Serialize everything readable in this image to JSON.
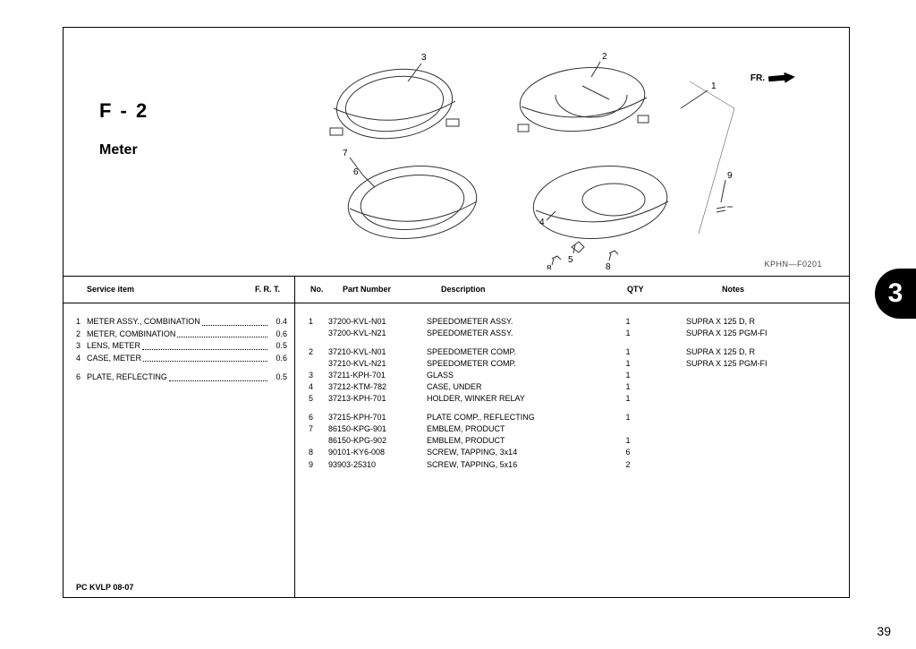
{
  "section": {
    "code": "F - 2",
    "name": "Meter"
  },
  "diagram": {
    "callouts": [
      "1",
      "2",
      "3",
      "4",
      "5",
      "6",
      "7",
      "8",
      "8",
      "9"
    ],
    "code": "KPHN—F0201",
    "fr_label": "FR."
  },
  "service_header": {
    "item": "Service item",
    "frt": "F. R. T."
  },
  "service_items": [
    {
      "no": "1",
      "name": "METER ASSY., COMBINATION",
      "frt": "0.4"
    },
    {
      "no": "2",
      "name": "METER, COMBINATION",
      "frt": "0.6"
    },
    {
      "no": "3",
      "name": "LENS, METER",
      "frt": "0.5"
    },
    {
      "no": "4",
      "name": "CASE, METER",
      "frt": "0.6"
    },
    {
      "no": "6",
      "name": "PLATE, REFLECTING",
      "frt": "0.5",
      "gap_before": true
    }
  ],
  "parts_header": {
    "no": "No.",
    "pn": "Part Number",
    "desc": "Description",
    "qty": "QTY",
    "notes": "Notes"
  },
  "parts": [
    {
      "no": "1",
      "pn": "37200-KVL-N01",
      "desc": "SPEEDOMETER ASSY.",
      "qty": "1",
      "notes": "SUPRA X 125 D, R"
    },
    {
      "no": "",
      "pn": "37200-KVL-N21",
      "desc": "SPEEDOMETER ASSY.",
      "qty": "1",
      "notes": "SUPRA X 125 PGM-FI"
    },
    {
      "gap": true
    },
    {
      "no": "2",
      "pn": "37210-KVL-N01",
      "desc": "SPEEDOMETER COMP.",
      "qty": "1",
      "notes": "SUPRA X 125 D, R"
    },
    {
      "no": "",
      "pn": "37210-KVL-N21",
      "desc": "SPEEDOMETER COMP.",
      "qty": "1",
      "notes": "SUPRA X 125 PGM-FI"
    },
    {
      "no": "3",
      "pn": "37211-KPH-701",
      "desc": "GLASS",
      "qty": "1",
      "notes": ""
    },
    {
      "no": "4",
      "pn": "37212-KTM-782",
      "desc": "CASE, UNDER",
      "qty": "1",
      "notes": ""
    },
    {
      "no": "5",
      "pn": "37213-KPH-701",
      "desc": "HOLDER, WINKER RELAY",
      "qty": "1",
      "notes": ""
    },
    {
      "gap": true
    },
    {
      "no": "6",
      "pn": "37215-KPH-701",
      "desc": "PLATE COMP., REFLECTING",
      "qty": "1",
      "notes": ""
    },
    {
      "no": "7",
      "pn": "86150-KPG-901",
      "desc": "EMBLEM, PRODUCT",
      "qty": "",
      "notes": ""
    },
    {
      "no": "",
      "pn": "86150-KPG-902",
      "desc": "EMBLEM, PRODUCT",
      "qty": "1",
      "notes": ""
    },
    {
      "no": "8",
      "pn": "90101-KY6-008",
      "desc": "SCREW, TAPPING, 3x14",
      "qty": "6",
      "notes": ""
    },
    {
      "no": "9",
      "pn": "93903-25310",
      "desc": "SCREW, TAPPING, 5x16",
      "qty": "2",
      "notes": ""
    }
  ],
  "footer": "PC KVLP 08-07",
  "page_number": "39",
  "tab": "3"
}
